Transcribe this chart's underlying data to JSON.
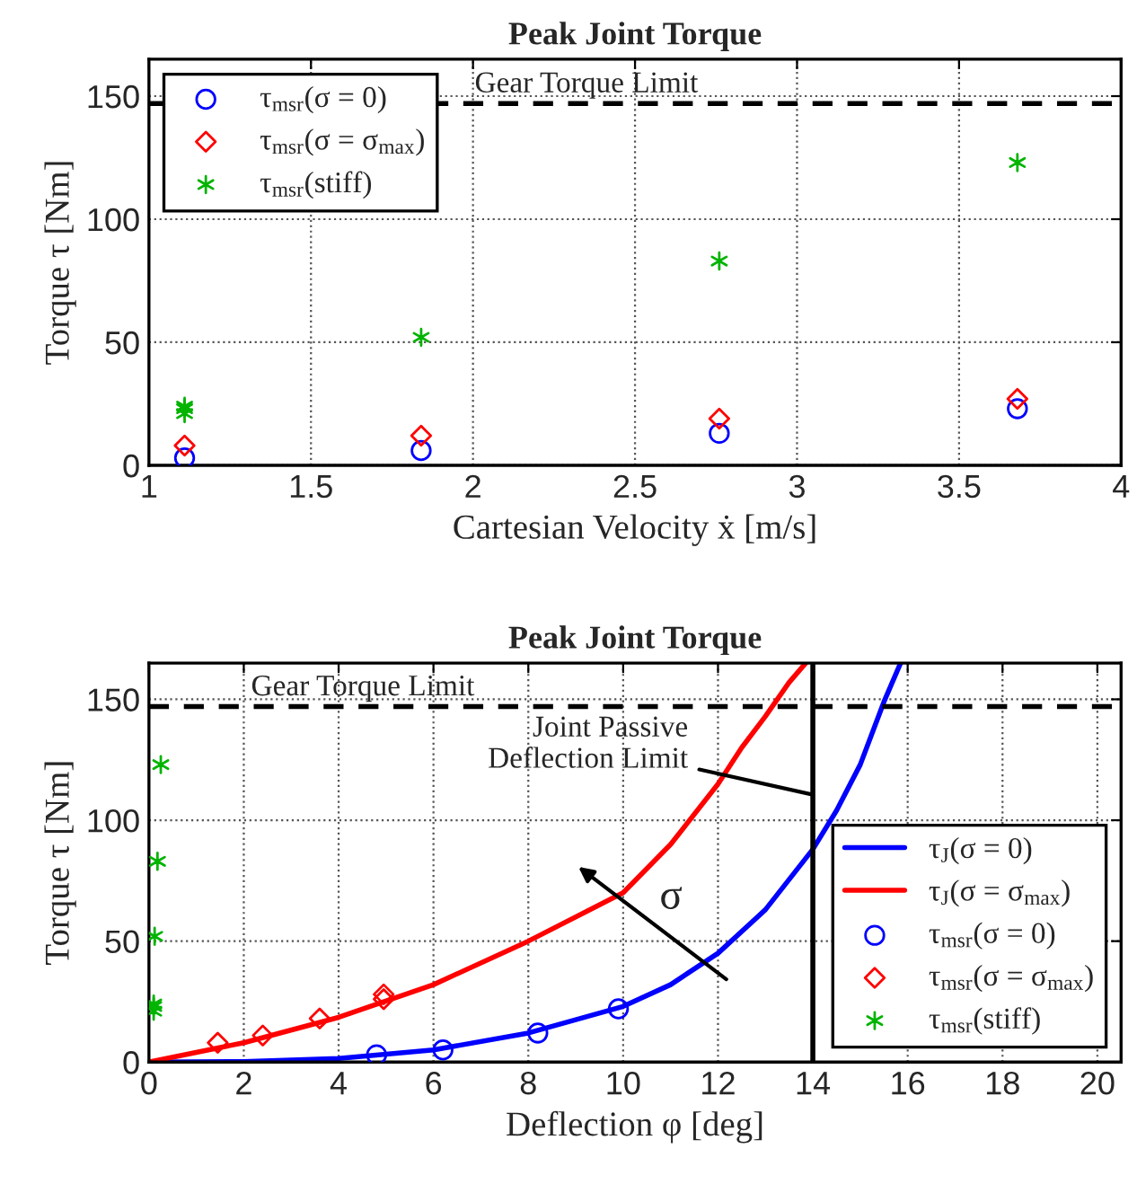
{
  "chart_data": [
    {
      "type": "scatter",
      "title": "Peak Joint Torque",
      "xlabel": "Cartesian Velocity ẋ [m/s]",
      "ylabel": "Torque τ [Nm]",
      "xlim": [
        1,
        4
      ],
      "xticks": [
        1,
        1.5,
        2,
        2.5,
        3,
        3.5,
        4
      ],
      "ylim": [
        0,
        165
      ],
      "yticks": [
        0,
        50,
        100,
        150
      ],
      "grid": true,
      "legend": "top left",
      "series": [
        {
          "name": "τ$_{msr}$(σ = 0)",
          "color": "#0000ff",
          "marker": "circle",
          "x": [
            1.11,
            1.84,
            2.76,
            3.68
          ],
          "values": [
            3,
            6,
            13,
            23
          ]
        },
        {
          "name": "τ$_{msr}$(σ = σ$_{max}$)",
          "color": "#ff0000",
          "marker": "diamond",
          "x": [
            1.11,
            1.84,
            2.76,
            3.68
          ],
          "values": [
            8,
            12,
            19,
            27
          ]
        },
        {
          "name": "τ$_{msr}$(stiff)",
          "color": "#00b400",
          "marker": "cross",
          "x": [
            1.11,
            1.11,
            1.11,
            1.84,
            2.76,
            3.68
          ],
          "values": [
            21,
            23,
            24,
            52,
            83,
            123
          ]
        }
      ],
      "ref_lines": [
        {
          "axis": "y",
          "value": 147,
          "label": "Gear Torque Limit",
          "line_style": "dashed",
          "color": "#000000"
        }
      ]
    },
    {
      "type": "line",
      "title": "Peak Joint Torque",
      "xlabel": "Deflection φ [deg]",
      "ylabel": "Torque τ [Nm]",
      "xlim": [
        0,
        20.5
      ],
      "xticks": [
        0,
        2,
        4,
        6,
        8,
        10,
        12,
        14,
        16,
        18,
        20
      ],
      "ylim": [
        0,
        165
      ],
      "yticks": [
        0,
        50,
        100,
        150
      ],
      "grid": true,
      "legend": "bottom right",
      "series": [
        {
          "name": "τ$_{J}$(σ = 0)",
          "color": "#0000ff",
          "type": "line",
          "marker": "none",
          "x": [
            0,
            2,
            4,
            6,
            8,
            10,
            11,
            12,
            13,
            14,
            14.5,
            15,
            15.5,
            15.85
          ],
          "values": [
            0,
            0.2,
            1.5,
            5,
            12,
            23,
            32,
            45,
            63,
            88,
            104,
            123,
            149,
            165
          ]
        },
        {
          "name": "τ$_{J}$(σ = σ$_{max}$)",
          "color": "#ff0000",
          "type": "line",
          "marker": "none",
          "x": [
            0,
            2,
            4,
            6,
            8,
            10,
            11,
            12,
            12.5,
            13,
            13.5,
            13.85
          ],
          "values": [
            0,
            8,
            18.5,
            32,
            50,
            70,
            90,
            115,
            130,
            143,
            157,
            165
          ]
        },
        {
          "name": "τ$_{msr}$(σ = 0)",
          "color": "#0000ff",
          "type": "scatter",
          "marker": "circle",
          "x": [
            4.8,
            6.2,
            8.2,
            9.9
          ],
          "values": [
            3,
            5,
            12,
            22
          ]
        },
        {
          "name": "τ$_{msr}$(σ = σ$_{max}$)",
          "color": "#ff0000",
          "type": "scatter",
          "marker": "diamond",
          "x": [
            1.45,
            2.4,
            3.6,
            4.95,
            4.95
          ],
          "values": [
            8,
            11,
            18,
            26,
            28
          ]
        },
        {
          "name": "τ$_{msr}$(stiff)",
          "color": "#00b400",
          "type": "scatter",
          "marker": "cross",
          "x": [
            0.1,
            0.1,
            0.1,
            0.12,
            0.18,
            0.25
          ],
          "values": [
            21,
            23,
            24,
            52,
            83,
            123
          ]
        }
      ],
      "ref_lines": [
        {
          "axis": "y",
          "value": 147,
          "label": "Gear Torque Limit",
          "line_style": "dashed",
          "color": "#000000"
        },
        {
          "axis": "x",
          "value": 14,
          "label": "Joint Passive\nDeflection Limit",
          "line_style": "solid",
          "color": "#000000"
        }
      ],
      "annotations": [
        "σ"
      ]
    }
  ]
}
